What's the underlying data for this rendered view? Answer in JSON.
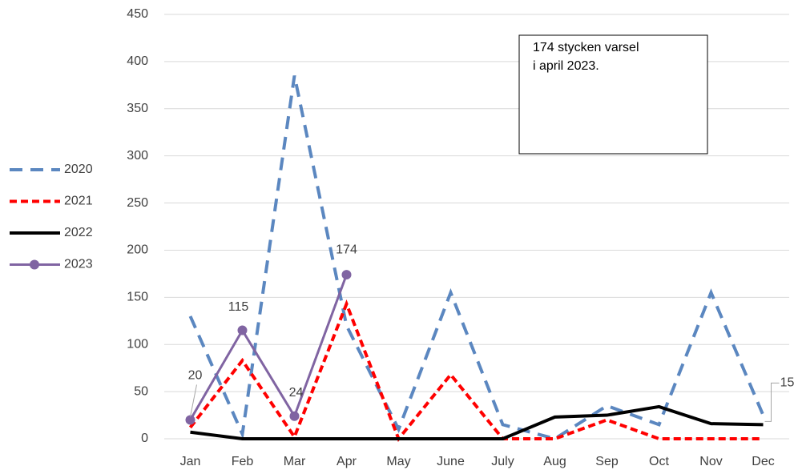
{
  "chart_data": {
    "type": "line",
    "categories": [
      "Jan",
      "Feb",
      "Mar",
      "Apr",
      "May",
      "June",
      "July",
      "Aug",
      "Sep",
      "Oct",
      "Nov",
      "Dec"
    ],
    "series": [
      {
        "name": "2020",
        "color": "#5b87c0",
        "values": [
          130,
          5,
          385,
          120,
          10,
          155,
          15,
          0,
          35,
          15,
          155,
          25
        ]
      },
      {
        "name": "2021",
        "color": "#ff0000",
        "values": [
          12,
          83,
          2,
          143,
          0,
          68,
          0,
          0,
          20,
          0,
          0,
          0
        ]
      },
      {
        "name": "2022",
        "color": "#000000",
        "values": [
          7,
          0,
          0,
          0,
          0,
          0,
          0,
          23,
          25,
          34,
          16,
          15
        ]
      },
      {
        "name": "2023",
        "color": "#8064a2",
        "values": [
          20,
          115,
          24,
          174,
          null,
          null,
          null,
          null,
          null,
          null,
          null,
          null
        ]
      }
    ],
    "ylim": [
      0,
      450
    ],
    "yticks": [
      0,
      50,
      100,
      150,
      200,
      250,
      300,
      350,
      400,
      450
    ],
    "grid": true,
    "legend": "left",
    "annotation": [
      "174 stycken varsel",
      "i april 2023."
    ]
  }
}
